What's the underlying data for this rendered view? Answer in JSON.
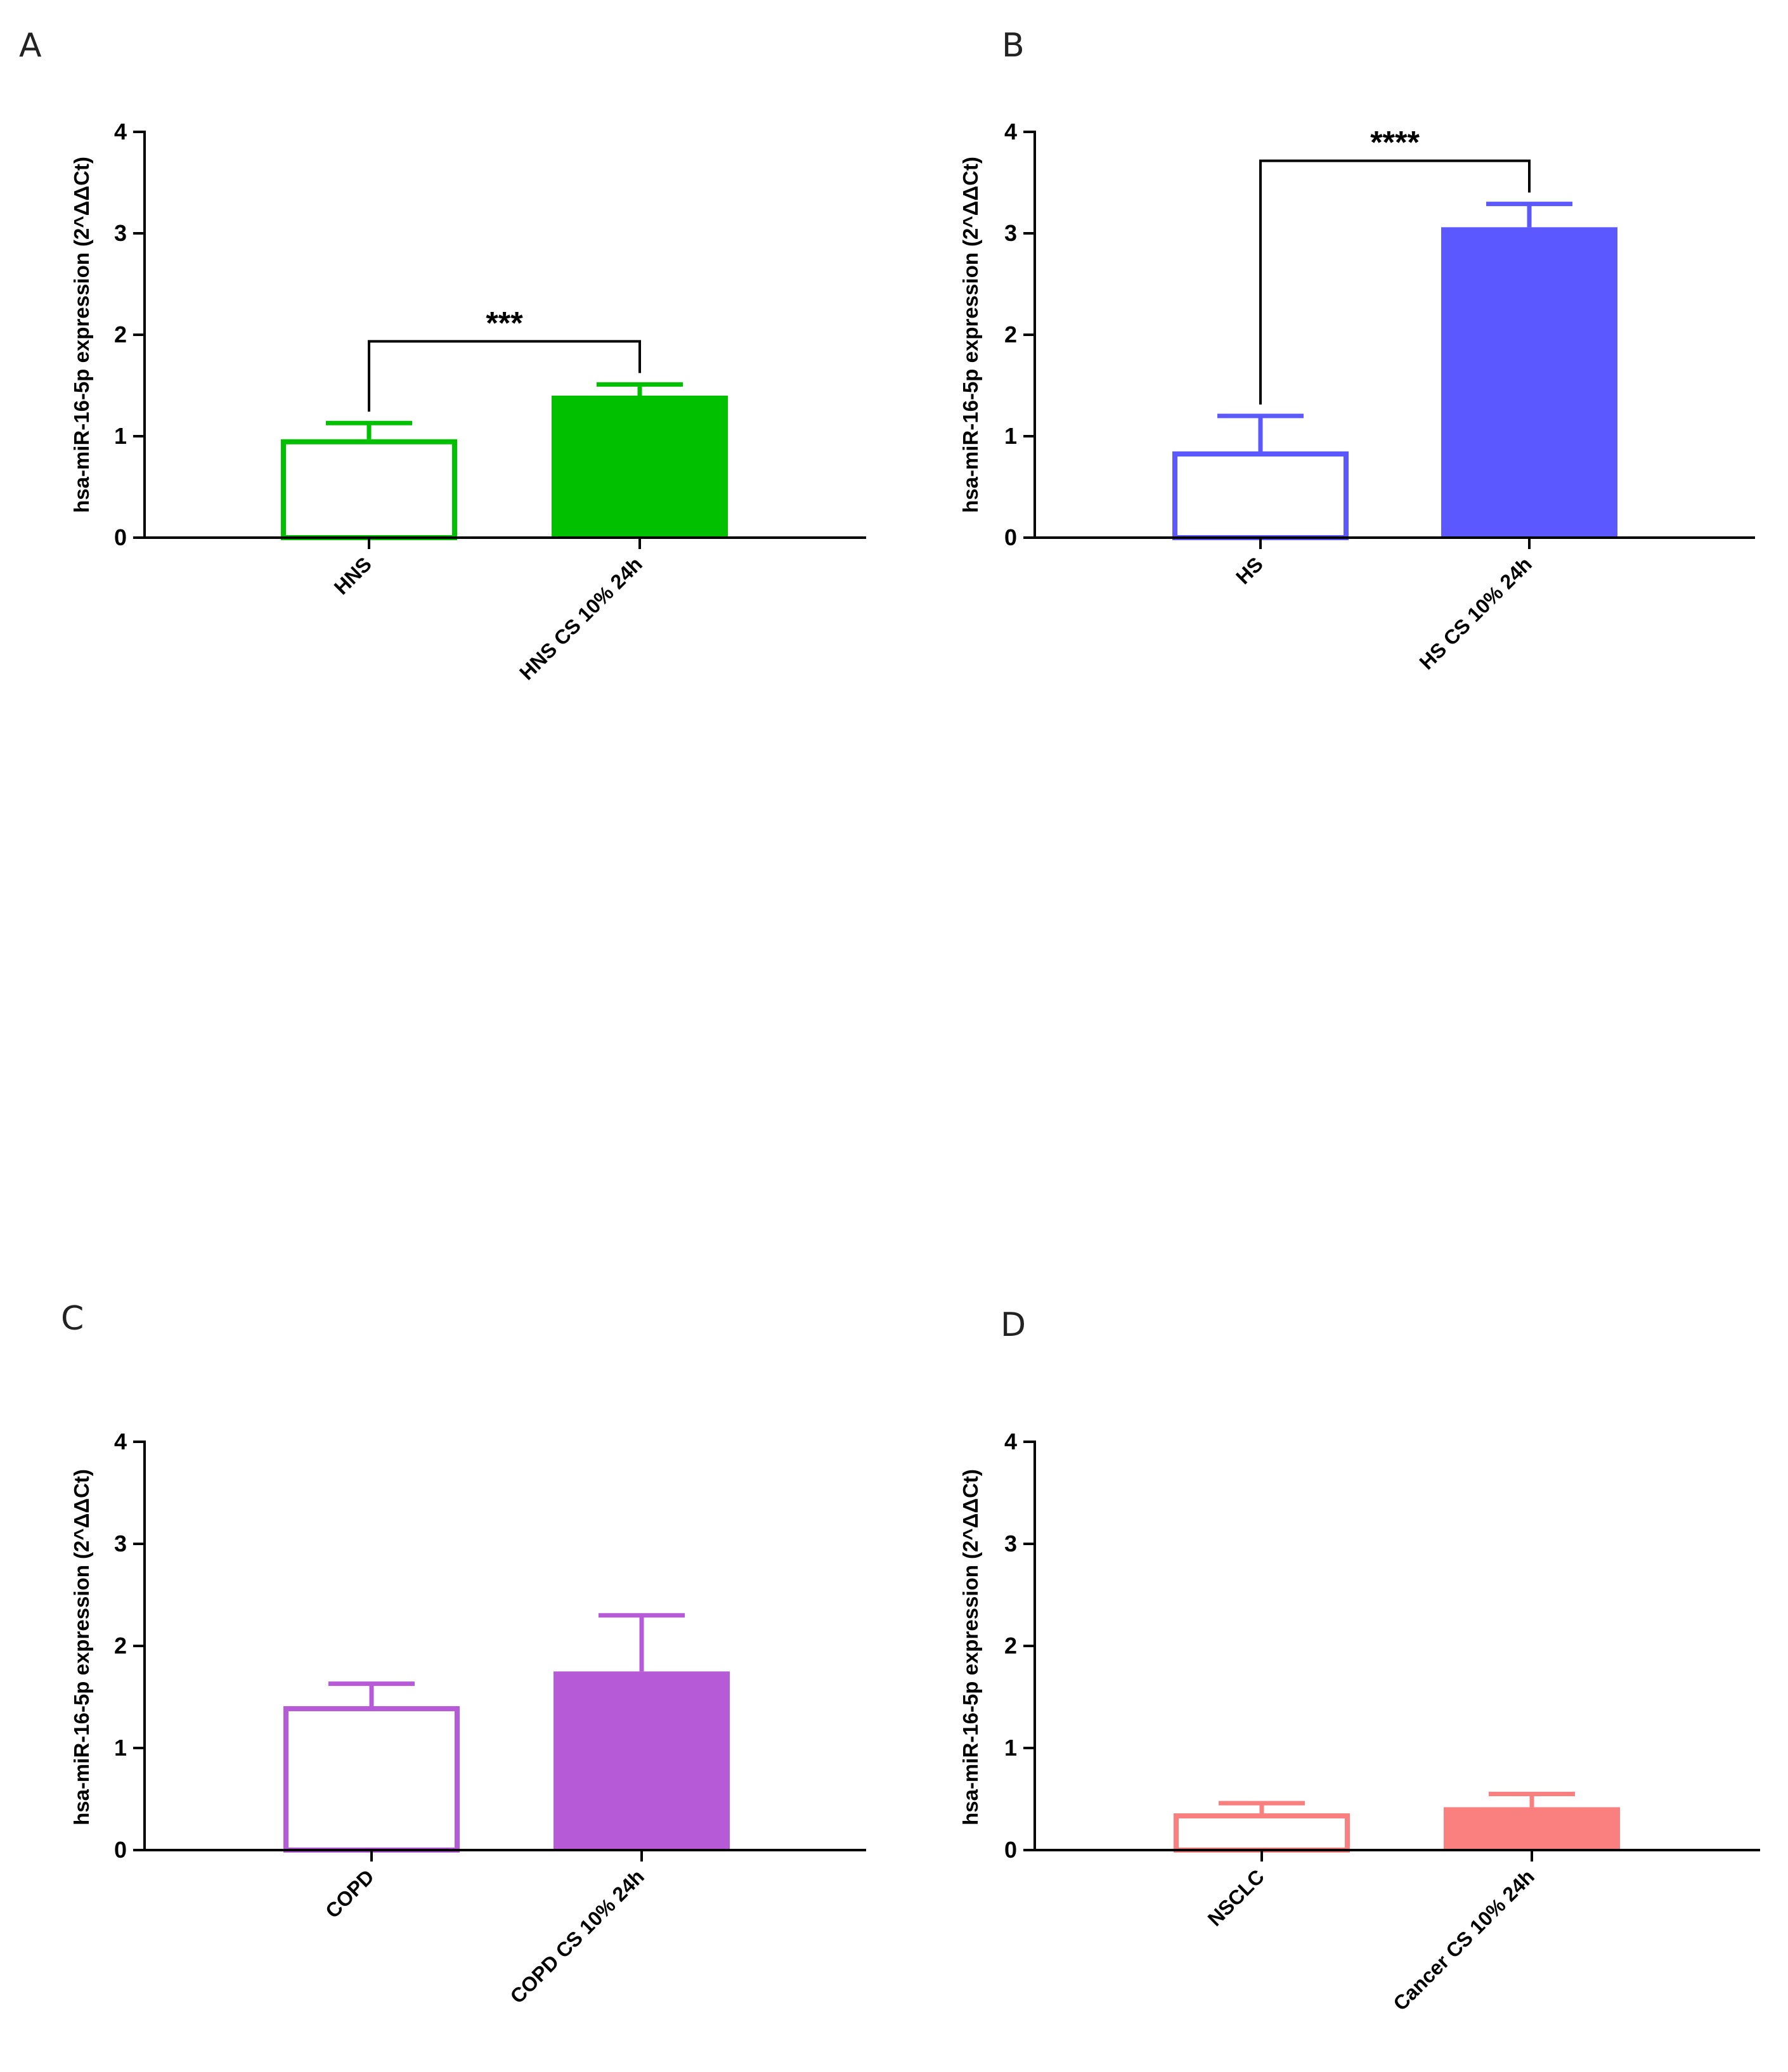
{
  "panels": [
    {
      "letter": "A",
      "color": "#00C000"
    },
    {
      "letter": "B",
      "color": "#5B58FF"
    },
    {
      "letter": "C",
      "color": "#B65AD8"
    },
    {
      "letter": "D",
      "color": "#FA8080"
    }
  ],
  "chart_data": [
    {
      "type": "bar",
      "panel": "A",
      "categories": [
        "HNS",
        "HNS CS 10% 24h"
      ],
      "values": [
        0.97,
        1.4
      ],
      "error": [
        0.16,
        0.11
      ],
      "fill": [
        "none",
        "solid"
      ],
      "ylabel": "hsa-miR-16-5p expression (2^ΔΔCt)",
      "ylim": [
        0,
        4
      ],
      "yticks": [
        0,
        1,
        2,
        3,
        4
      ],
      "significance": "***",
      "color": "#00C000"
    },
    {
      "type": "bar",
      "panel": "B",
      "categories": [
        "HS",
        "HS CS 10% 24h"
      ],
      "values": [
        0.85,
        3.06
      ],
      "error": [
        0.35,
        0.23
      ],
      "fill": [
        "none",
        "solid"
      ],
      "ylabel": "hsa-miR-16-5p expression (2^ΔΔCt)",
      "ylim": [
        0,
        4
      ],
      "yticks": [
        0,
        1,
        2,
        3,
        4
      ],
      "significance": "****",
      "color": "#5B58FF"
    },
    {
      "type": "bar",
      "panel": "C",
      "categories": [
        "COPD",
        "COPD CS 10% 24h"
      ],
      "values": [
        1.41,
        1.75
      ],
      "error": [
        0.22,
        0.55
      ],
      "fill": [
        "none",
        "solid"
      ],
      "ylabel": "hsa-miR-16-5p expression (2^ΔΔCt)",
      "ylim": [
        0,
        4
      ],
      "yticks": [
        0,
        1,
        2,
        3,
        4
      ],
      "significance": "",
      "color": "#B65AD8"
    },
    {
      "type": "bar",
      "panel": "D",
      "categories": [
        "NSCLC",
        "Cancer CS 10% 24h"
      ],
      "values": [
        0.36,
        0.42
      ],
      "error": [
        0.1,
        0.13
      ],
      "fill": [
        "none",
        "solid"
      ],
      "ylabel": "hsa-miR-16-5p expression (2^ΔΔCt)",
      "ylim": [
        0,
        4
      ],
      "yticks": [
        0,
        1,
        2,
        3,
        4
      ],
      "significance": "",
      "color": "#FA8080"
    }
  ]
}
